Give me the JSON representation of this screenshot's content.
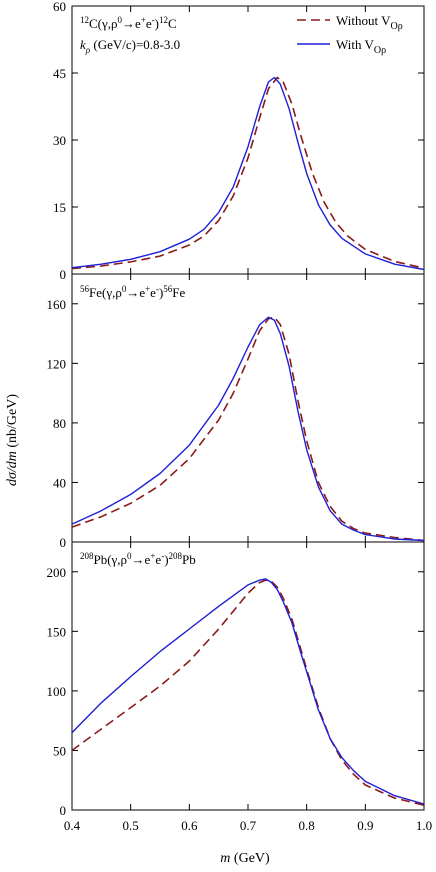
{
  "chart_data": {
    "type": "line",
    "xlabel_var": "m",
    "xlabel_unit": "(GeV)",
    "ylabel_var": "dσ/dm",
    "ylabel_unit": "(nb/GeV)",
    "xlim": [
      0.4,
      1.0
    ],
    "x_ticks": [
      "0.4",
      "0.5",
      "0.6",
      "0.7",
      "0.8",
      "0.9",
      "1.0"
    ],
    "legend": {
      "placement": "top-right",
      "without_prefix": "Without V",
      "with_prefix": "With V",
      "subscript": "Oρ"
    },
    "kinematics_label": "(GeV/c)=0.8-3.0",
    "colors": {
      "without": "#8b1a1a",
      "with": "#1f1fd6"
    },
    "panels": [
      {
        "id": "C",
        "mass": "12",
        "element": "C",
        "ylim": [
          0,
          60
        ],
        "y_ticks": [
          0,
          15,
          30,
          45,
          60
        ],
        "series": [
          {
            "key": "without",
            "x": [
              0.4,
              0.45,
              0.5,
              0.55,
              0.6,
              0.625,
              0.65,
              0.675,
              0.7,
              0.72,
              0.735,
              0.75,
              0.76,
              0.775,
              0.79,
              0.81,
              0.83,
              0.85,
              0.87,
              0.9,
              0.95,
              1.0
            ],
            "y": [
              1.2,
              1.8,
              2.7,
              4.0,
              6.5,
              8.5,
              12.0,
              17.5,
              26.0,
              35.0,
              41.5,
              44.0,
              43.0,
              38.0,
              31.0,
              22.5,
              16.0,
              11.5,
              8.5,
              5.5,
              2.8,
              1.3
            ]
          },
          {
            "key": "with",
            "x": [
              0.4,
              0.45,
              0.5,
              0.55,
              0.6,
              0.625,
              0.65,
              0.675,
              0.7,
              0.72,
              0.735,
              0.745,
              0.755,
              0.77,
              0.785,
              0.8,
              0.82,
              0.84,
              0.86,
              0.9,
              0.95,
              1.0
            ],
            "y": [
              1.4,
              2.2,
              3.3,
              5.0,
              7.8,
              10.0,
              13.8,
              19.5,
              28.5,
              37.5,
              43.0,
              44.0,
              42.5,
              37.0,
              29.5,
              22.5,
              15.5,
              11.0,
              8.0,
              4.5,
              2.2,
              1.0
            ]
          }
        ]
      },
      {
        "id": "Fe",
        "mass": "56",
        "element": "Fe",
        "ylim": [
          0,
          180
        ],
        "y_ticks": [
          0,
          40,
          80,
          120,
          160
        ],
        "series": [
          {
            "key": "without",
            "x": [
              0.4,
              0.45,
              0.5,
              0.55,
              0.6,
              0.65,
              0.675,
              0.7,
              0.72,
              0.735,
              0.745,
              0.755,
              0.77,
              0.785,
              0.8,
              0.82,
              0.84,
              0.86,
              0.88,
              0.9,
              0.95,
              1.0
            ],
            "y": [
              10,
              17,
              26,
              38,
              56,
              82,
              100,
              123,
              142,
              150,
              151,
              146,
              126,
              95,
              68,
              40,
              24,
              14,
              9,
              6,
              3,
              1
            ]
          },
          {
            "key": "with",
            "x": [
              0.4,
              0.45,
              0.5,
              0.55,
              0.6,
              0.65,
              0.675,
              0.7,
              0.72,
              0.735,
              0.745,
              0.755,
              0.77,
              0.785,
              0.8,
              0.82,
              0.84,
              0.86,
              0.88,
              0.9,
              0.95,
              1.0
            ],
            "y": [
              12,
              21,
              32,
              46,
              65,
              92,
              110,
              131,
              146,
              151,
              149,
              140,
              118,
              88,
              62,
              37,
              21,
              12,
              8,
              5,
              2,
              1
            ]
          }
        ]
      },
      {
        "id": "Pb",
        "mass": "208",
        "element": "Pb",
        "ylim": [
          0,
          225
        ],
        "y_ticks": [
          0,
          50,
          100,
          150,
          200
        ],
        "series": [
          {
            "key": "without",
            "x": [
              0.4,
              0.45,
              0.5,
              0.55,
              0.6,
              0.65,
              0.7,
              0.72,
              0.73,
              0.74,
              0.75,
              0.76,
              0.775,
              0.79,
              0.8,
              0.82,
              0.84,
              0.86,
              0.88,
              0.9,
              0.95,
              1.0
            ],
            "y": [
              50,
              68,
              86,
              104,
              125,
              152,
              182,
              191,
              193,
              192,
              187,
              178,
              160,
              135,
              118,
              86,
              60,
              42,
              30,
              21,
              10,
              4
            ]
          },
          {
            "key": "with",
            "x": [
              0.4,
              0.45,
              0.5,
              0.55,
              0.6,
              0.65,
              0.7,
              0.72,
              0.73,
              0.74,
              0.75,
              0.76,
              0.775,
              0.79,
              0.8,
              0.82,
              0.84,
              0.86,
              0.88,
              0.9,
              0.95,
              1.0
            ],
            "y": [
              65,
              90,
              112,
              133,
              152,
              171,
              189,
              193,
              194,
              191,
              185,
              175,
              157,
              132,
              116,
              84,
              60,
              44,
              33,
              24,
              12,
              5
            ]
          }
        ]
      }
    ]
  }
}
